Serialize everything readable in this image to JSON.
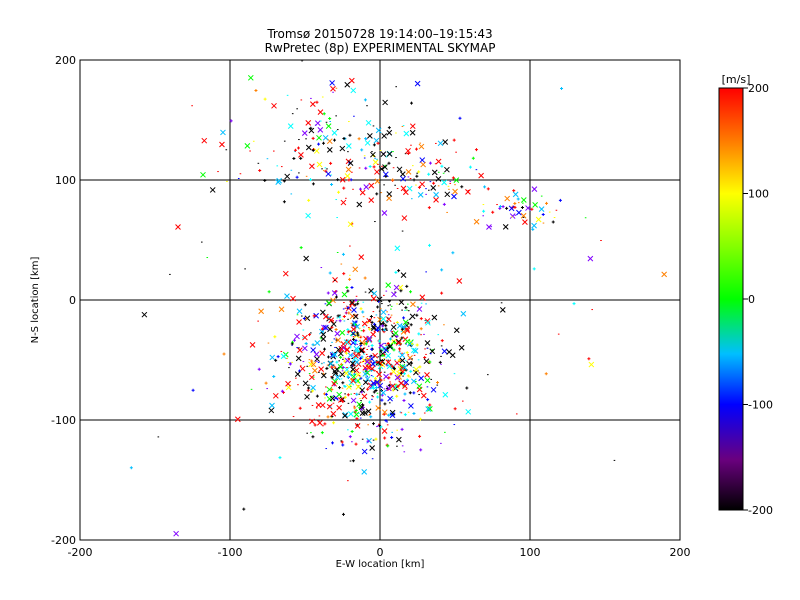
{
  "chart_data": {
    "type": "scatter",
    "title": "Tromsø 20150728 19:14:00–19:15:43",
    "subtitle": "RwPretec (8p) EXPERIMENTAL SKYMAP",
    "xlabel": "E-W location [km]",
    "ylabel": "N-S location [km]",
    "xlim": [
      -200,
      200
    ],
    "ylim": [
      -200,
      200
    ],
    "xticks": [
      "-200",
      "-100",
      "0",
      "100",
      "200"
    ],
    "yticks": [
      "-200",
      "-100",
      "0",
      "100",
      "200"
    ],
    "grid": true,
    "colorbar": {
      "label": "[m/s]",
      "range": [
        -200,
        200
      ],
      "ticks": [
        "-200",
        "-100",
        "0",
        "100",
        "200"
      ]
    },
    "clusters": [
      {
        "cx": -10,
        "cy": -50,
        "sx": 25,
        "sy": 32,
        "n": 900
      },
      {
        "cx": -35,
        "cy": 130,
        "sx": 30,
        "sy": 25,
        "n": 160
      },
      {
        "cx": 20,
        "cy": 105,
        "sx": 30,
        "sy": 15,
        "n": 110
      },
      {
        "cx": 95,
        "cy": 75,
        "sx": 12,
        "sy": 9,
        "n": 45
      },
      {
        "cx": 0,
        "cy": 20,
        "sx": 90,
        "sy": 90,
        "n": 90
      }
    ],
    "markers": [
      "x",
      "+",
      "."
    ]
  }
}
